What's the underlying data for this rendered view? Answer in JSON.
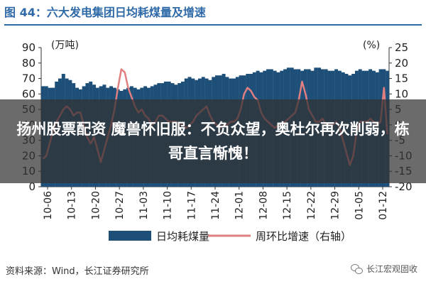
{
  "figure": {
    "title": "图 44：六大发电集团日均耗煤量及增速",
    "source": "资料来源：Wind，长江证券研究所",
    "watermark": "长江宏观固收"
  },
  "headline": "扬州股票配资 魔兽怀旧服：不负众望，奥杜尔再次削弱，栋哥直言惭愧！",
  "chart_data": {
    "type": "bar+line",
    "left_unit": "(万吨)",
    "right_unit": "(%)",
    "left_ylim": [
      0,
      90
    ],
    "left_ticks": [
      "0",
      "10",
      "20",
      "30",
      "40",
      "50",
      "60",
      "70",
      "80",
      "90"
    ],
    "right_ylim": [
      -20,
      25
    ],
    "right_ticks": [
      "-20",
      "-15",
      "-10",
      "-5",
      "0",
      "5",
      "10",
      "15",
      "20",
      "25"
    ],
    "x_tick_labels": [
      "10-06",
      "10-13",
      "10-20",
      "10-27",
      "11-03",
      "11-10",
      "11-17",
      "11-24",
      "12-01",
      "12-08",
      "12-15",
      "12-22",
      "12-29",
      "01-05",
      "01-12"
    ],
    "colors": {
      "bars": "#1d4f79",
      "line": "#e07e80"
    },
    "series": [
      {
        "name": "日均耗煤量",
        "axis": "left",
        "values": [
          65,
          65,
          64,
          64,
          68,
          70,
          73,
          70,
          69,
          67,
          64,
          63,
          65,
          67,
          68,
          66,
          64,
          65,
          66,
          64,
          65,
          64,
          63,
          62,
          63,
          64,
          65,
          64,
          63,
          64,
          65,
          64,
          65,
          66,
          67,
          67,
          68,
          68,
          67,
          66,
          67,
          68,
          70,
          71,
          70,
          69,
          70,
          71,
          70,
          69,
          71,
          72,
          72,
          73,
          71,
          70,
          70,
          71,
          72,
          72,
          73,
          73,
          74,
          75,
          74,
          75,
          76,
          76,
          75,
          74,
          75,
          76,
          77,
          77,
          76,
          76,
          75,
          76,
          76,
          75,
          77,
          77,
          76,
          76,
          75,
          75,
          76,
          75,
          74,
          73,
          72,
          73,
          75,
          76,
          75,
          75,
          76,
          75,
          74,
          76,
          76,
          75
        ]
      },
      {
        "name": "周环比增速（右轴）",
        "axis": "right",
        "values": [
          -11,
          -10,
          -6,
          -2,
          1,
          3,
          5,
          6,
          5,
          3,
          4,
          4,
          0,
          -4,
          -6,
          -4,
          -8,
          -12,
          -8,
          -4,
          0,
          5,
          12,
          18,
          17,
          12,
          9,
          6,
          4,
          5,
          3,
          2,
          0,
          1,
          3,
          3,
          2,
          1,
          1,
          1,
          0,
          0,
          -1,
          0,
          1,
          3,
          4,
          5,
          6,
          3,
          1,
          0,
          -1,
          0,
          0,
          1,
          1,
          2,
          5,
          10,
          12,
          11,
          9,
          8,
          4,
          2,
          1,
          0,
          -1,
          0,
          0,
          1,
          2,
          3,
          4,
          8,
          14,
          10,
          5,
          3,
          1,
          1,
          2,
          0,
          0,
          0,
          1,
          -1,
          -5,
          -9,
          -13,
          -10,
          -2,
          1,
          1,
          1,
          2,
          1,
          0,
          1,
          12,
          -3
        ]
      }
    ],
    "legend": [
      "日均耗煤量",
      "周环比增速（右轴）"
    ],
    "legend_position": "bottom"
  }
}
